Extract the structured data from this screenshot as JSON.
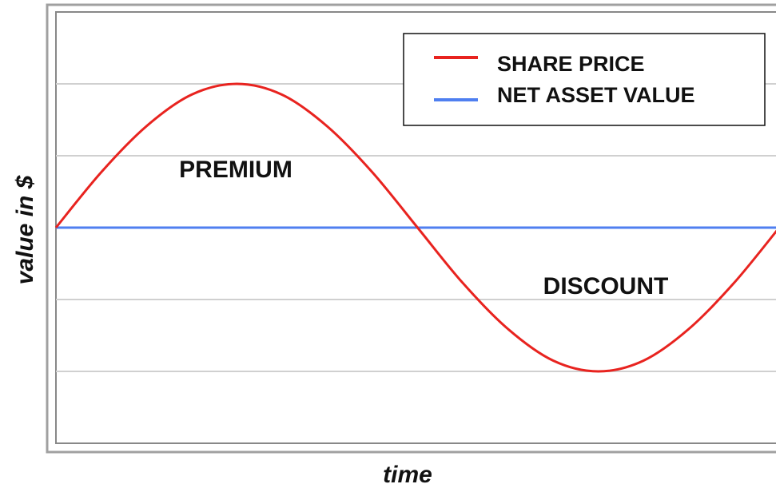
{
  "chart_data": {
    "type": "line",
    "xlabel": "time",
    "ylabel": "value in $",
    "annotations": [
      "PREMIUM",
      "DISCOUNT"
    ],
    "x": [
      0,
      0.25,
      0.5,
      0.75,
      1,
      1.25,
      1.5,
      1.75,
      2,
      2.25,
      2.5,
      2.75,
      3,
      3.25,
      3.5,
      3.75,
      4
    ],
    "series": [
      {
        "name": "SHARE PRICE",
        "color": "#e8231f",
        "values": [
          0,
          0.77,
          1.41,
          1.85,
          2,
          1.85,
          1.41,
          0.77,
          0,
          -0.77,
          -1.41,
          -1.85,
          -2,
          -1.85,
          -1.41,
          -0.77,
          0
        ]
      },
      {
        "name": "NET ASSET VALUE",
        "color": "#4f7ff0",
        "values": [
          0,
          0,
          0,
          0,
          0,
          0,
          0,
          0,
          0,
          0,
          0,
          0,
          0,
          0,
          0,
          0,
          0
        ]
      }
    ],
    "xlim": [
      0,
      4
    ],
    "ylim": [
      -3,
      3
    ],
    "yticks": [
      -2,
      -1,
      0,
      1,
      2
    ],
    "grid": true,
    "legend": "upper right"
  }
}
